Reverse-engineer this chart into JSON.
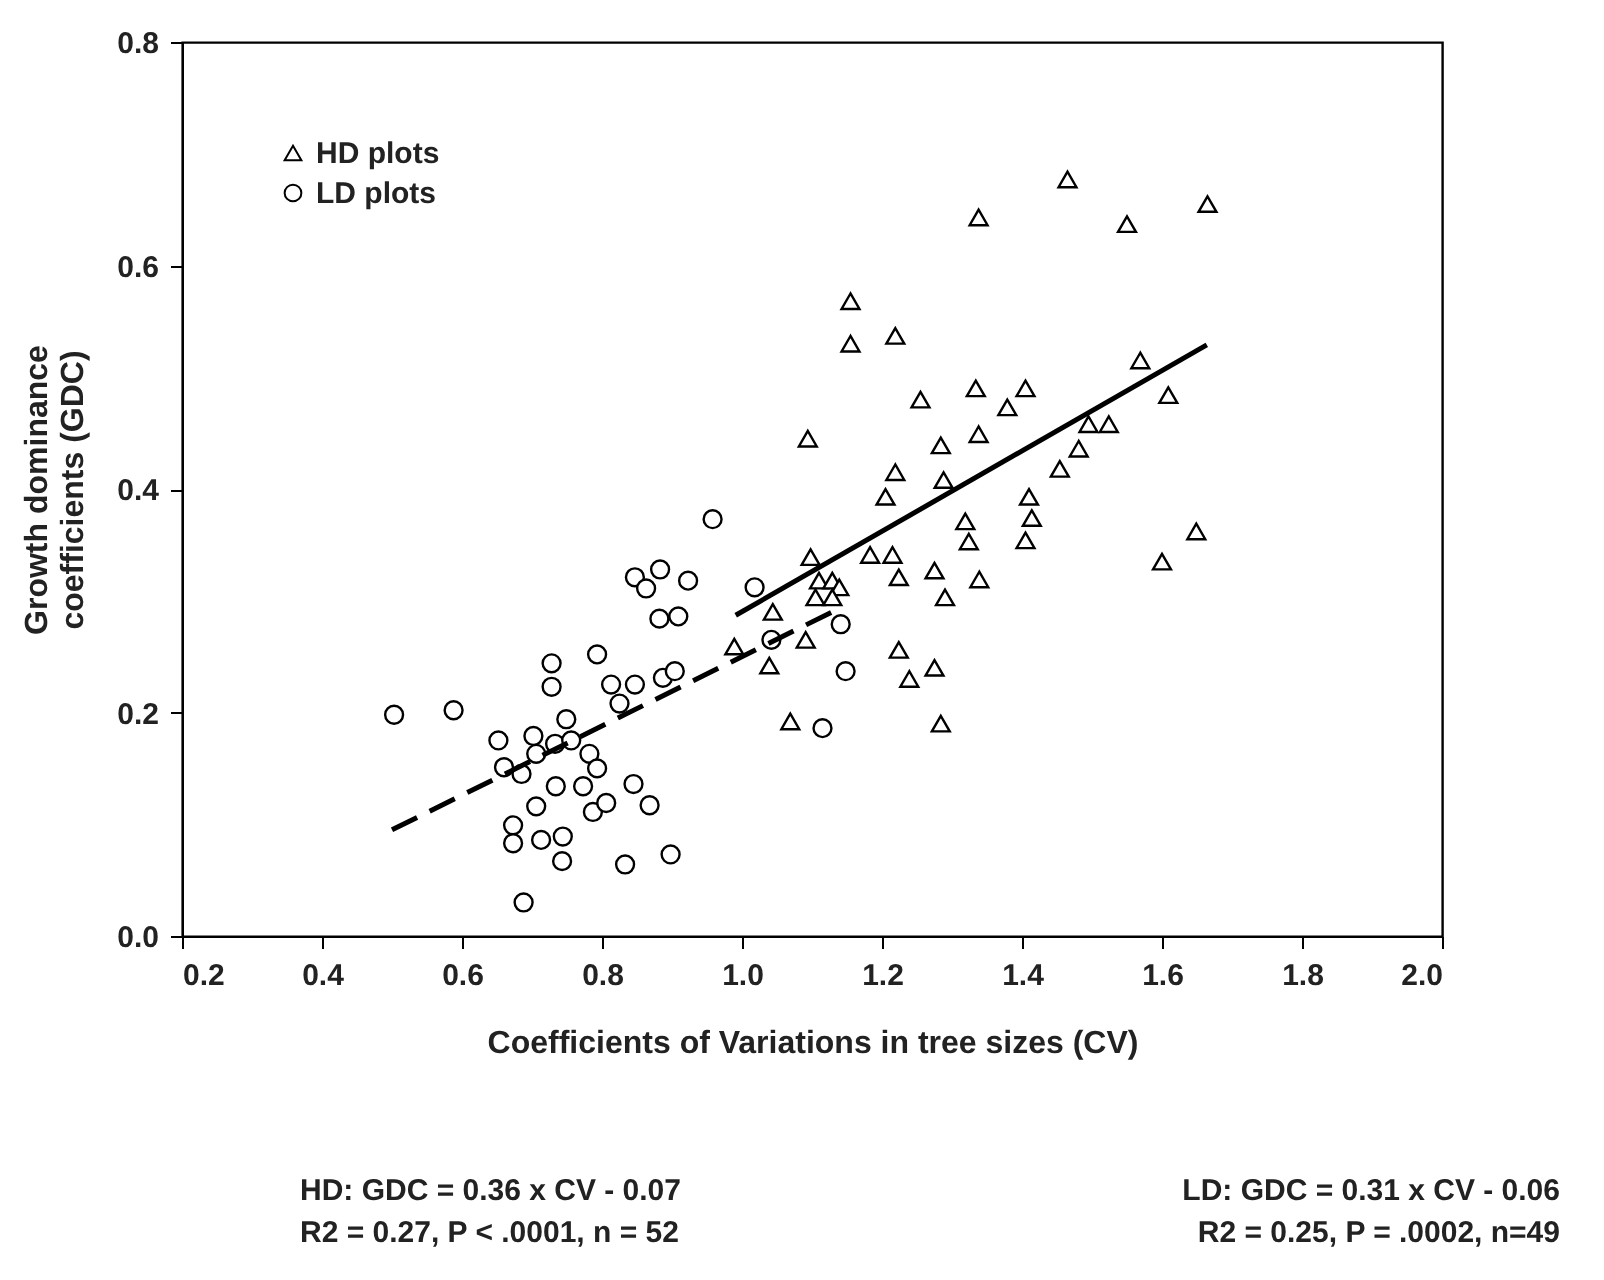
{
  "chart_data": {
    "type": "scatter",
    "xlabel": "Coefficients of  Variations in tree sizes (CV)",
    "ylabel": "Growth dominance coefficients (GDC)",
    "xlim": [
      0.2,
      2.0
    ],
    "ylim": [
      0,
      0.8
    ],
    "xticks": [
      0.2,
      0.4,
      0.6,
      0.8,
      {
        "value": 1,
        "label": "1.0"
      },
      1.2,
      1.4,
      1.6,
      1.8,
      {
        "value": 2,
        "label": "2.0"
      }
    ],
    "yticks": [
      {
        "value": 0,
        "label": "0.0"
      },
      0.2,
      0.4,
      0.6,
      0.8
    ],
    "legend": "top left",
    "grid": false,
    "annotations": [
      "HD: GDC = 0.36 x CV - 0.07",
      "R2 = 0.27, P < .0001, n = 52",
      "LD: GDC = 0.31 x CV - 0.06",
      "R2 = 0.25, P = .0002, n=49"
    ],
    "series": [
      {
        "name": "HD plots",
        "marker": "triangle",
        "color": "#000000",
        "x": [
          1.465,
          1.338,
          1.55,
          1.665,
          1.155,
          1.155,
          1.219,
          1.569,
          1.609,
          1.255,
          1.334,
          1.405,
          1.379,
          1.094,
          1.284,
          1.338,
          1.495,
          1.524,
          1.481,
          1.454,
          1.219,
          1.205,
          1.288,
          1.41,
          1.414,
          1.405,
          1.319,
          1.324,
          1.649,
          1.6,
          1.098,
          1.183,
          1.215,
          1.224,
          1.275,
          1.339,
          1.29,
          1.11,
          1.129,
          1.139,
          1.105,
          1.129,
          1.044,
          0.989,
          1.039,
          1.091,
          1.224,
          1.239,
          1.275,
          1.069,
          1.284
        ],
        "values": [
          0.677,
          0.643,
          0.637,
          0.655,
          0.568,
          0.53,
          0.537,
          0.515,
          0.484,
          0.48,
          0.49,
          0.49,
          0.473,
          0.445,
          0.439,
          0.449,
          0.458,
          0.458,
          0.436,
          0.418,
          0.415,
          0.393,
          0.408,
          0.393,
          0.374,
          0.354,
          0.371,
          0.353,
          0.362,
          0.335,
          0.339,
          0.341,
          0.341,
          0.321,
          0.327,
          0.319,
          0.303,
          0.318,
          0.318,
          0.312,
          0.303,
          0.303,
          0.29,
          0.259,
          0.242,
          0.265,
          0.256,
          0.23,
          0.24,
          0.192,
          0.19
        ]
      },
      {
        "name": "LD plots",
        "marker": "circle",
        "color": "#000000",
        "x": [
          0.958,
          0.847,
          0.883,
          0.863,
          0.923,
          1.018,
          0.882,
          0.909,
          1.042,
          0.728,
          0.728,
          0.793,
          0.813,
          0.847,
          0.887,
          0.904,
          0.825,
          0.503,
          0.588,
          1.115,
          0.749,
          0.652,
          0.702,
          0.733,
          0.756,
          0.66,
          0.706,
          0.685,
          0.782,
          0.793,
          0.773,
          0.734,
          0.706,
          0.787,
          0.806,
          0.845,
          0.868,
          0.673,
          0.673,
          0.713,
          0.744,
          0.743,
          0.833,
          0.898,
          0.688,
          1.141,
          1.148
        ],
        "values": [
          0.373,
          0.321,
          0.328,
          0.311,
          0.318,
          0.312,
          0.284,
          0.286,
          0.265,
          0.244,
          0.223,
          0.252,
          0.225,
          0.225,
          0.231,
          0.237,
          0.208,
          0.198,
          0.202,
          0.186,
          0.194,
          0.175,
          0.179,
          0.172,
          0.175,
          0.151,
          0.163,
          0.145,
          0.163,
          0.15,
          0.134,
          0.134,
          0.116,
          0.111,
          0.119,
          0.136,
          0.117,
          0.099,
          0.083,
          0.086,
          0.089,
          0.067,
          0.064,
          0.073,
          0.03,
          0.279,
          0.237
        ]
      },
      {
        "type": "line",
        "line_style": "solid",
        "color": "#000000",
        "x": [
          0.991,
          1.664
        ],
        "values": [
          0.287,
          0.529
        ]
      },
      {
        "type": "line",
        "line_style": "dashed",
        "color": "#000000",
        "x": [
          0.5,
          1.145
        ],
        "values": [
          0.095,
          0.295
        ]
      }
    ]
  }
}
